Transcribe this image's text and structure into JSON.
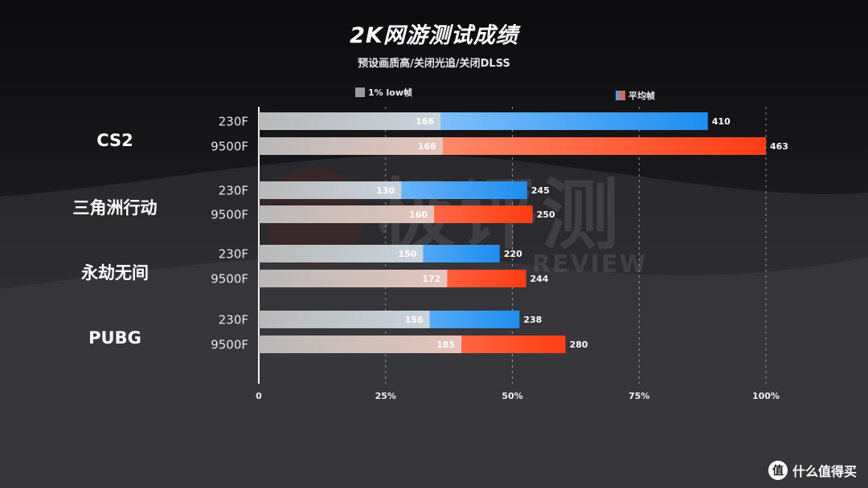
{
  "chart_data": {
    "type": "bar",
    "orientation": "horizontal",
    "title": "2K网游测试成绩",
    "subtitle": "预设画质高/关闭光追/关闭DLSS",
    "x_ticks": [
      "0",
      "25%",
      "50%",
      "75%",
      "100%"
    ],
    "xlim": [
      0,
      463
    ],
    "legend": [
      {
        "name": "1% low帧",
        "color": "#a8a8a8"
      },
      {
        "name": "平均帧",
        "color": "#ff5a2a"
      }
    ],
    "groups": [
      {
        "name": "CS2",
        "rows": [
          {
            "cpu": "230F",
            "low": 166,
            "avg": 410
          },
          {
            "cpu": "9500F",
            "low": 168,
            "avg": 463
          }
        ]
      },
      {
        "name": "三角洲行动",
        "rows": [
          {
            "cpu": "230F",
            "low": 130,
            "avg": 245
          },
          {
            "cpu": "9500F",
            "low": 160,
            "avg": 250
          }
        ]
      },
      {
        "name": "永劫无间",
        "rows": [
          {
            "cpu": "230F",
            "low": 150,
            "avg": 220
          },
          {
            "cpu": "9500F",
            "low": 172,
            "avg": 244
          }
        ]
      },
      {
        "name": "PUBG",
        "rows": [
          {
            "cpu": "230F",
            "low": 156,
            "avg": 238
          },
          {
            "cpu": "9500F",
            "low": 185,
            "avg": 280
          }
        ]
      }
    ]
  },
  "watermark": {
    "main": "极评测",
    "sub": "REVIEW"
  },
  "footer": {
    "logo_char": "值",
    "text": "什么值得买"
  },
  "colors": {
    "blue_light": "#bfe0ff",
    "blue_dark": "#1e8df0",
    "red_light": "#ffb49a",
    "red_dark": "#ff3c14",
    "low_start": "#b9b9b9",
    "low_end_blue": "#c9d3dc",
    "low_end_red": "#e6c4ba"
  }
}
